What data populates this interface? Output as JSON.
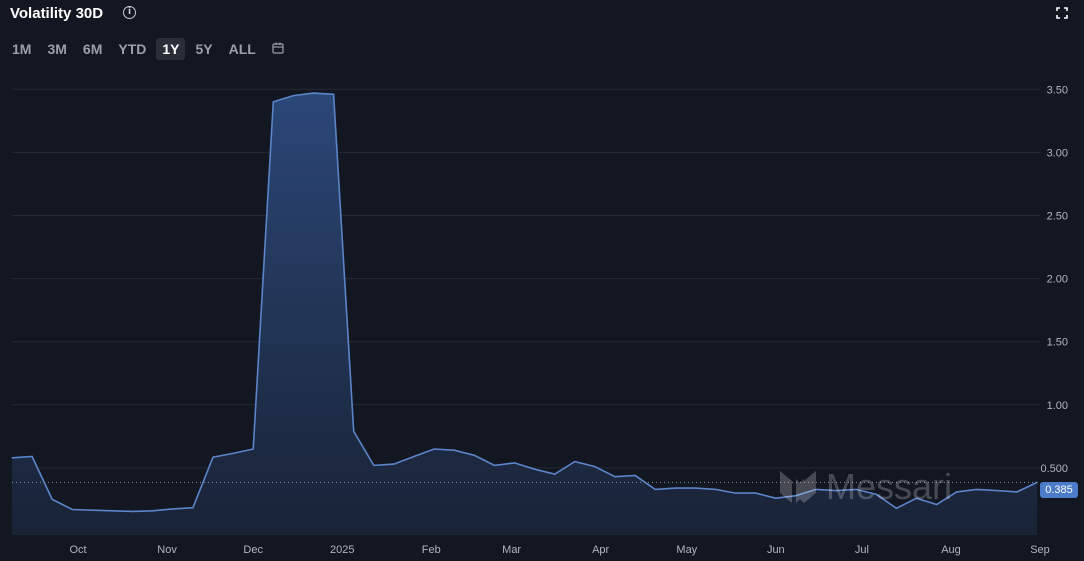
{
  "title": "Volatility 30D",
  "ranges": [
    "1M",
    "3M",
    "6M",
    "YTD",
    "1Y",
    "5Y",
    "ALL"
  ],
  "active_range": "1Y",
  "watermark": "Messari",
  "current_value_label": "0.385",
  "colors": {
    "line": "#5b84c9",
    "fill_top": "#27406b",
    "background": "#131722",
    "grid": "#262a35"
  },
  "chart_data": {
    "type": "area",
    "title": "Volatility 30D",
    "xlabel": "",
    "ylabel": "",
    "x_ticks": [
      "Oct",
      "Nov",
      "Dec",
      "2025",
      "Feb",
      "Mar",
      "Apr",
      "May",
      "Jun",
      "Jul",
      "Aug",
      "Sep"
    ],
    "y_ticks": [
      "0.500",
      "1.00",
      "1.50",
      "2.00",
      "2.50",
      "3.00",
      "3.50"
    ],
    "ylim": [
      0,
      3.55
    ],
    "x_range": [
      "2024-09-08",
      "2025-09-01"
    ],
    "grid": true,
    "current_value": 0.385,
    "series": [
      {
        "points": [
          [
            "2024-09-08",
            0.58
          ],
          [
            "2024-09-15",
            0.59
          ],
          [
            "2024-09-22",
            0.25
          ],
          [
            "2024-09-29",
            0.17
          ],
          [
            "2024-10-06",
            0.165
          ],
          [
            "2024-10-13",
            0.16
          ],
          [
            "2024-10-20",
            0.155
          ],
          [
            "2024-10-27",
            0.16
          ],
          [
            "2024-11-03",
            0.175
          ],
          [
            "2024-11-10",
            0.185
          ],
          [
            "2024-11-17",
            0.585
          ],
          [
            "2024-11-24",
            0.615
          ],
          [
            "2024-12-01",
            0.65
          ],
          [
            "2024-12-08",
            3.4
          ],
          [
            "2024-12-15",
            3.45
          ],
          [
            "2024-12-22",
            3.47
          ],
          [
            "2024-12-29",
            3.46
          ],
          [
            "2025-01-05",
            0.79
          ],
          [
            "2025-01-12",
            0.52
          ],
          [
            "2025-01-19",
            0.53
          ],
          [
            "2025-01-26",
            0.59
          ],
          [
            "2025-02-02",
            0.65
          ],
          [
            "2025-02-09",
            0.64
          ],
          [
            "2025-02-16",
            0.6
          ],
          [
            "2025-02-23",
            0.52
          ],
          [
            "2025-03-02",
            0.54
          ],
          [
            "2025-03-09",
            0.49
          ],
          [
            "2025-03-16",
            0.45
          ],
          [
            "2025-03-23",
            0.55
          ],
          [
            "2025-03-30",
            0.51
          ],
          [
            "2025-04-06",
            0.43
          ],
          [
            "2025-04-13",
            0.44
          ],
          [
            "2025-04-20",
            0.33
          ],
          [
            "2025-04-27",
            0.34
          ],
          [
            "2025-05-04",
            0.34
          ],
          [
            "2025-05-11",
            0.33
          ],
          [
            "2025-05-18",
            0.3
          ],
          [
            "2025-05-25",
            0.3
          ],
          [
            "2025-06-01",
            0.26
          ],
          [
            "2025-06-08",
            0.28
          ],
          [
            "2025-06-15",
            0.33
          ],
          [
            "2025-06-22",
            0.32
          ],
          [
            "2025-06-29",
            0.33
          ],
          [
            "2025-07-06",
            0.29
          ],
          [
            "2025-07-13",
            0.18
          ],
          [
            "2025-07-20",
            0.26
          ],
          [
            "2025-07-27",
            0.21
          ],
          [
            "2025-08-03",
            0.31
          ],
          [
            "2025-08-10",
            0.33
          ],
          [
            "2025-08-17",
            0.32
          ],
          [
            "2025-08-24",
            0.31
          ],
          [
            "2025-08-31",
            0.385
          ]
        ]
      }
    ]
  }
}
